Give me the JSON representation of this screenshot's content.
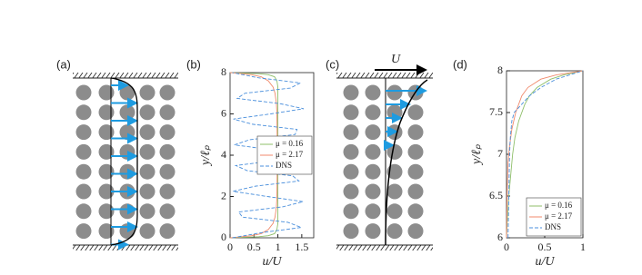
{
  "panel_labels": [
    "(a)",
    "(b)",
    "(c)",
    "(d)"
  ],
  "diagram_c": {
    "arrow_label": "U"
  },
  "chart_data": [
    {
      "type": "line",
      "xlabel": "u/U",
      "ylabel": "y/ℓₚ",
      "xlim": [
        0,
        1.75
      ],
      "xticks": [
        0,
        0.5,
        1,
        1.5
      ],
      "ylim": [
        0,
        8
      ],
      "yticks": [
        0,
        2,
        4,
        6,
        8
      ],
      "legend": "center right",
      "series": [
        {
          "name": "μ = 0.16",
          "color": "#8fbf6a",
          "dashed": false,
          "y": [
            0,
            0.05,
            0.1,
            0.2,
            0.4,
            0.7,
            1,
            4,
            7,
            7.3,
            7.6,
            7.8,
            7.9,
            7.95,
            8
          ],
          "values": [
            0,
            0.6,
            0.8,
            0.93,
            0.98,
            1,
            1,
            1,
            1,
            1,
            0.98,
            0.93,
            0.8,
            0.6,
            0
          ]
        },
        {
          "name": "μ = 2.17",
          "color": "#f08a6c",
          "dashed": false,
          "y": [
            0,
            0.05,
            0.1,
            0.2,
            0.4,
            0.7,
            1,
            1.5,
            2,
            4,
            6,
            6.5,
            7,
            7.3,
            7.6,
            7.8,
            7.9,
            7.95,
            8
          ],
          "values": [
            0,
            0.25,
            0.45,
            0.65,
            0.8,
            0.9,
            0.94,
            0.97,
            0.98,
            0.99,
            0.98,
            0.97,
            0.94,
            0.9,
            0.8,
            0.65,
            0.45,
            0.25,
            0
          ]
        },
        {
          "name": "DNS",
          "color": "#4a8fdc",
          "dashed": true,
          "y": [
            0,
            0.25,
            0.5,
            0.75,
            1,
            1.25,
            1.5,
            1.75,
            2,
            2.25,
            2.5,
            2.75,
            3,
            3.25,
            3.5,
            3.75,
            4,
            4.25,
            4.5,
            4.75,
            5,
            5.25,
            5.5,
            5.75,
            6,
            6.25,
            6.5,
            6.75,
            7,
            7.25,
            7.5,
            7.75,
            8
          ],
          "values": [
            0.05,
            0.66,
            1.49,
            1.21,
            0.26,
            0.18,
            1.1,
            1.53,
            0.78,
            0.06,
            0.53,
            1.44,
            1.31,
            0.36,
            0.12,
            0.97,
            1.55,
            0.91,
            0.09,
            0.41,
            1.36,
            1.4,
            0.47,
            0.07,
            0.85,
            1.54,
            1.04,
            0.15,
            0.31,
            1.26,
            1.47,
            0.59,
            0.05
          ]
        }
      ]
    },
    {
      "type": "line",
      "xlabel": "u/U",
      "ylabel": "y/ℓₚ",
      "xlim": [
        0,
        1
      ],
      "xticks": [
        0,
        0.5,
        1
      ],
      "ylim": [
        6,
        8
      ],
      "yticks": [
        6,
        6.5,
        7,
        7.5,
        8
      ],
      "legend": "lower right",
      "series": [
        {
          "name": "μ = 0.16",
          "color": "#8fbf6a",
          "dashed": false,
          "y": [
            6,
            6.2,
            6.5,
            6.8,
            7,
            7.2,
            7.4,
            7.6,
            7.7,
            7.8,
            7.9,
            7.95,
            8
          ],
          "values": [
            0,
            0.01,
            0.03,
            0.06,
            0.08,
            0.11,
            0.16,
            0.24,
            0.3,
            0.4,
            0.58,
            0.75,
            1
          ]
        },
        {
          "name": "μ = 2.17",
          "color": "#f08a6c",
          "dashed": false,
          "y": [
            6,
            6.3,
            6.6,
            6.9,
            7.1,
            7.3,
            7.5,
            7.7,
            7.8,
            7.9,
            7.95,
            8
          ],
          "values": [
            0,
            0.005,
            0.01,
            0.02,
            0.04,
            0.07,
            0.12,
            0.2,
            0.28,
            0.45,
            0.65,
            1
          ]
        },
        {
          "name": "DNS",
          "color": "#4a8fdc",
          "dashed": true,
          "y": [
            6,
            6.5,
            7,
            7.2,
            7.4,
            7.5,
            7.55,
            7.6,
            7.7,
            7.8,
            7.9,
            8
          ],
          "values": [
            0.02,
            0.03,
            0.04,
            0.05,
            0.07,
            0.1,
            0.15,
            0.2,
            0.3,
            0.45,
            0.65,
            1
          ]
        }
      ]
    }
  ]
}
